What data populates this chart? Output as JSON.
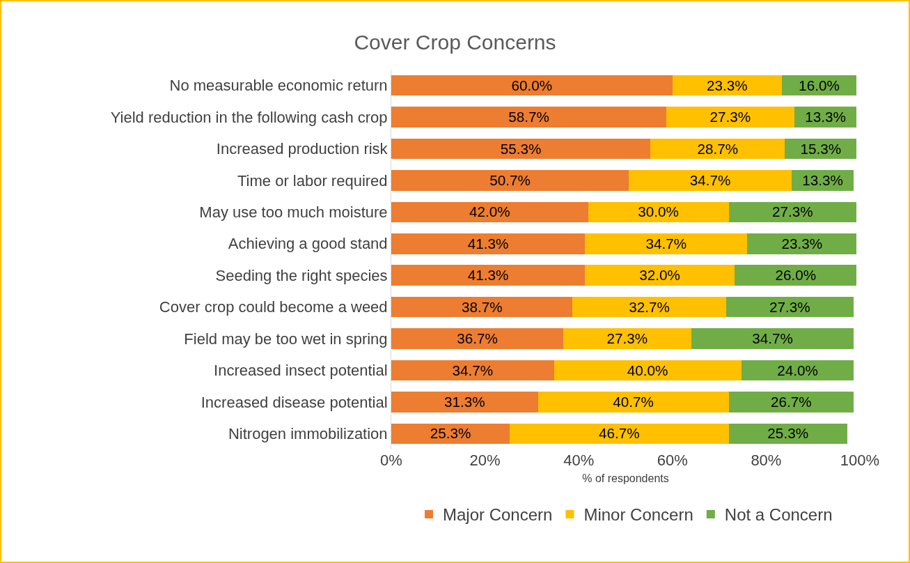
{
  "chart_data": {
    "type": "bar",
    "orientation": "horizontal",
    "stacked": true,
    "title": "Cover Crop Concerns",
    "xlabel": "% of respondents",
    "categories": [
      "No measurable economic return",
      "Yield reduction in the following cash crop",
      "Increased production risk",
      "Time or labor required",
      "May use too much moisture",
      "Achieving a good stand",
      "Seeding the right species",
      "Cover crop could become a weed",
      "Field may be too wet in spring",
      "Increased insect potential",
      "Increased disease potential",
      "Nitrogen immobilization"
    ],
    "series": [
      {
        "name": "Major Concern",
        "color": "#ed7d31",
        "values": [
          60.0,
          58.7,
          55.3,
          50.7,
          42.0,
          41.3,
          41.3,
          38.7,
          36.7,
          34.7,
          31.3,
          25.3
        ],
        "value_labels": [
          "60.0%",
          "58.7%",
          "55.3%",
          "50.7%",
          "42.0%",
          "41.3%",
          "41.3%",
          "38.7%",
          "36.7%",
          "34.7%",
          "31.3%",
          "25.3%"
        ]
      },
      {
        "name": "Minor Concern",
        "color": "#ffc000",
        "values": [
          23.3,
          27.3,
          28.7,
          34.7,
          30.0,
          34.7,
          32.0,
          32.7,
          27.3,
          40.0,
          40.7,
          46.7
        ],
        "value_labels": [
          "23.3%",
          "27.3%",
          "28.7%",
          "34.7%",
          "30.0%",
          "34.7%",
          "32.0%",
          "32.7%",
          "27.3%",
          "40.0%",
          "40.7%",
          "46.7%"
        ]
      },
      {
        "name": "Not a Concern",
        "color": "#70ad47",
        "values": [
          16.0,
          13.3,
          15.3,
          13.3,
          27.3,
          23.3,
          26.0,
          27.3,
          34.7,
          24.0,
          26.7,
          25.3
        ],
        "value_labels": [
          "16.0%",
          "13.3%",
          "15.3%",
          "13.3%",
          "27.3%",
          "23.3%",
          "26.0%",
          "27.3%",
          "34.7%",
          "24.0%",
          "26.7%",
          "25.3%"
        ]
      }
    ],
    "xlim": [
      0,
      100
    ],
    "xticks": [
      {
        "value": 0,
        "label": "0%"
      },
      {
        "value": 20,
        "label": "20%"
      },
      {
        "value": 40,
        "label": "40%"
      },
      {
        "value": 60,
        "label": "60%"
      },
      {
        "value": 80,
        "label": "80%"
      },
      {
        "value": 100,
        "label": "100%"
      }
    ],
    "grid": false,
    "legend": "bottom"
  }
}
